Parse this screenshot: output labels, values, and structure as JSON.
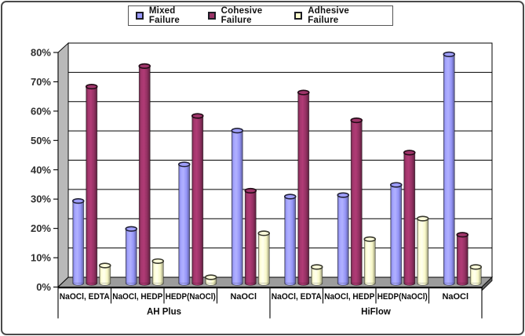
{
  "chart_data": {
    "type": "bar",
    "bar_style": "3d-cylinder",
    "title": "",
    "xlabel": "",
    "ylabel": "",
    "ylim": [
      0,
      80
    ],
    "y_ticks": [
      "0%",
      "10%",
      "20%",
      "30%",
      "40%",
      "50%",
      "60%",
      "70%",
      "80%"
    ],
    "grid": true,
    "legend_position": "top",
    "group_labels": [
      "AH Plus",
      "HiFlow"
    ],
    "categories": [
      "NaOCl, EDTA",
      "NaOCl, HEDP",
      "HEDP(NaOCl)",
      "NaOCl",
      "NaOCl, EDTA",
      "NaOCl, HEDP",
      "HEDP(NaOCl)",
      "NaOCl"
    ],
    "series": [
      {
        "name": "Mixed Failure",
        "color": "#9999ff",
        "values": [
          28,
          18.5,
          40.5,
          52,
          29.5,
          30,
          33.5,
          78
        ]
      },
      {
        "name": "Cohesive Failure",
        "color": "#993366",
        "values": [
          67,
          74,
          57,
          31.5,
          65,
          55.5,
          44.5,
          16.5
        ]
      },
      {
        "name": "Adhesive Failure",
        "color": "#ffffcc",
        "values": [
          6,
          7.5,
          2,
          17,
          5.5,
          15,
          22,
          5.5
        ]
      }
    ],
    "colors": {
      "wall_side": "#b9b9b9",
      "wall_back": "#ffffff",
      "floor_top": "#9c9c9c",
      "floor_edge": "#5e5e5e",
      "gridline": "#000000",
      "axis_text": "#2f2f2f"
    }
  }
}
